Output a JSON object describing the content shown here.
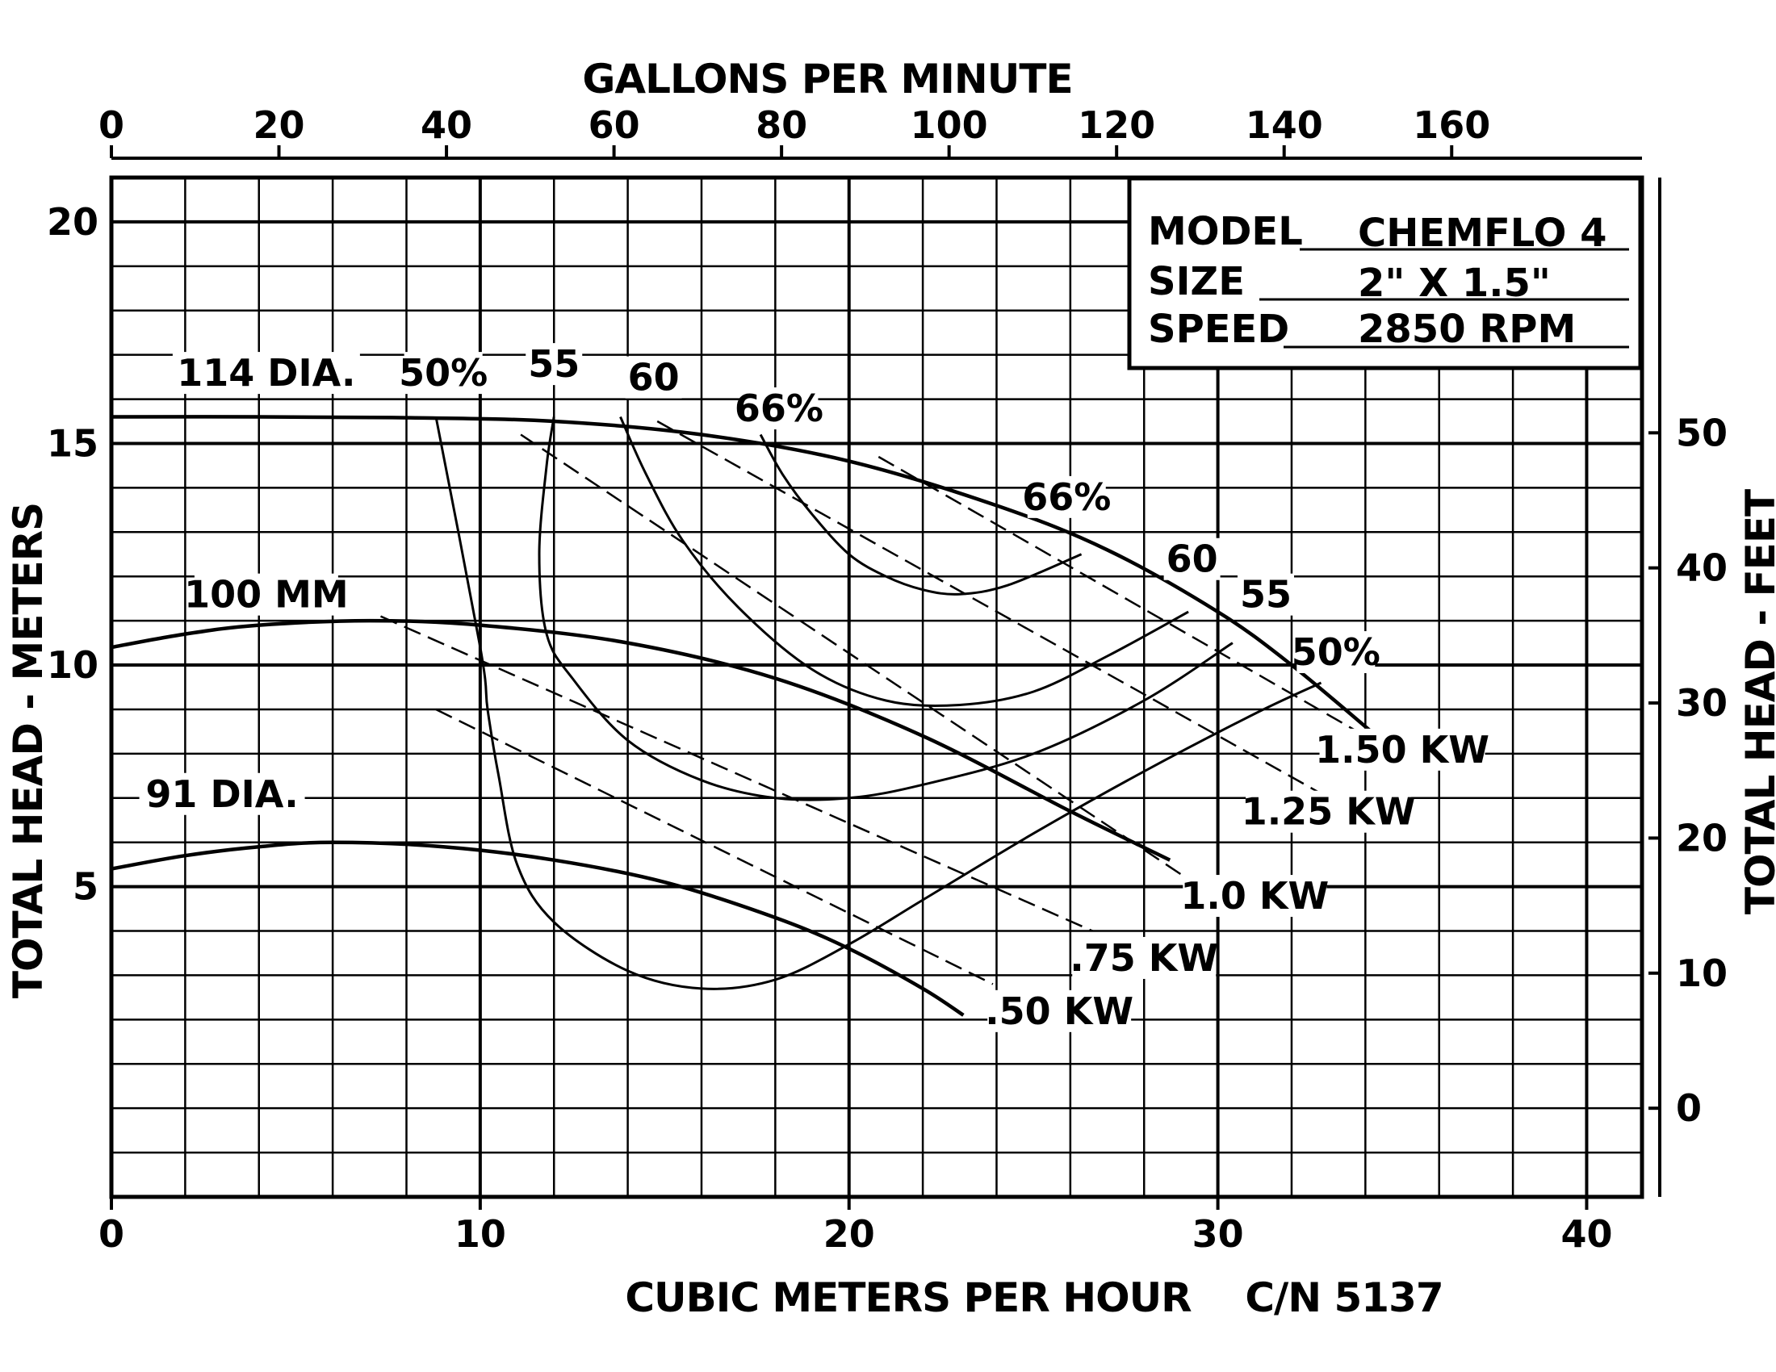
{
  "chart_data": {
    "type": "line",
    "title": "",
    "xlabel": "CUBIC METERS PER HOUR",
    "x2label": "GALLONS PER MINUTE",
    "ylabel": "TOTAL HEAD - METERS",
    "y2label": "TOTAL HEAD - FEET",
    "catalog_number": "C/N 5137",
    "xlim": [
      0,
      41.5
    ],
    "ylim": [
      -2,
      21
    ],
    "x_ticks": [
      "0",
      "10",
      "20",
      "30",
      "40"
    ],
    "x_tick_values": [
      0,
      10,
      20,
      30,
      40
    ],
    "y_ticks": [
      "5",
      "10",
      "15",
      "20"
    ],
    "y_tick_values": [
      5,
      10,
      15,
      20
    ],
    "x2_ticks": [
      "0",
      "20",
      "40",
      "60",
      "80",
      "100",
      "120",
      "140",
      "160"
    ],
    "x2_tick_values": [
      0,
      20,
      40,
      60,
      80,
      100,
      120,
      140,
      160
    ],
    "y2_ticks": [
      "0",
      "10",
      "20",
      "30",
      "40",
      "50"
    ],
    "y2_tick_values": [
      0,
      10,
      20,
      30,
      40,
      50
    ],
    "grid": true,
    "info_box": {
      "model_label": "MODEL",
      "model_value": "CHEMFLO 4",
      "size_label": "SIZE",
      "size_value": "2\" X 1.5\"",
      "speed_label": "SPEED",
      "speed_value": "2850 RPM"
    },
    "head_curves": [
      {
        "label": "114 DIA.",
        "label_pos": [
          4.2,
          16.3
        ],
        "x": [
          0,
          4,
          8,
          12,
          16,
          20,
          24,
          27,
          30,
          32,
          34.3
        ],
        "y": [
          15.6,
          15.6,
          15.58,
          15.5,
          15.2,
          14.6,
          13.6,
          12.6,
          11.2,
          10.0,
          8.4
        ]
      },
      {
        "label": "100 MM",
        "label_pos": [
          4.2,
          11.3
        ],
        "x": [
          0,
          2,
          4,
          7,
          10,
          14,
          18,
          22,
          26,
          28.7
        ],
        "y": [
          10.4,
          10.7,
          10.9,
          11.0,
          10.9,
          10.5,
          9.7,
          8.4,
          6.7,
          5.6
        ]
      },
      {
        "label": "91 DIA.",
        "label_pos": [
          3.0,
          6.8
        ],
        "x": [
          0,
          2,
          4,
          6,
          9,
          12,
          15,
          18,
          20,
          22,
          23.1
        ],
        "y": [
          5.4,
          5.7,
          5.9,
          6.0,
          5.9,
          5.6,
          5.1,
          4.3,
          3.6,
          2.7,
          2.1
        ]
      }
    ],
    "efficiency_curves": [
      {
        "label": "50%",
        "label_pos": [
          9.0,
          16.3
        ],
        "label2": "50%",
        "label2_pos": [
          33.2,
          10.0
        ],
        "x": [
          8.8,
          10,
          10.2,
          10.5,
          11,
          12,
          14,
          16,
          18,
          20,
          22,
          25,
          28,
          31,
          32.8
        ],
        "y": [
          15.6,
          10.4,
          9.0,
          7.5,
          5.5,
          4.2,
          3.1,
          2.7,
          2.9,
          3.7,
          4.7,
          6.2,
          7.6,
          8.9,
          9.6
        ]
      },
      {
        "label": "55",
        "label_pos": [
          12.0,
          16.5
        ],
        "label2": "55",
        "label2_pos": [
          31.3,
          11.3
        ],
        "x": [
          12,
          11.8,
          11.6,
          11.8,
          12.5,
          14,
          16,
          18,
          20,
          22,
          25,
          28,
          30.4
        ],
        "y": [
          15.6,
          14.5,
          12.5,
          10.7,
          9.7,
          8.3,
          7.4,
          7.0,
          7.0,
          7.3,
          8.0,
          9.2,
          10.5
        ]
      },
      {
        "label": "60",
        "label_pos": [
          14.7,
          16.2
        ],
        "label2": "60",
        "label2_pos": [
          29.3,
          12.1
        ],
        "x": [
          13.8,
          14.5,
          15.5,
          17,
          19,
          21,
          23,
          25,
          27,
          29.2
        ],
        "y": [
          15.6,
          14.3,
          12.8,
          11.3,
          9.9,
          9.2,
          9.1,
          9.4,
          10.2,
          11.2
        ]
      },
      {
        "label": "66%",
        "label_pos": [
          18.1,
          15.5
        ],
        "label2": "66%",
        "label2_pos": [
          25.9,
          13.5
        ],
        "x": [
          17.6,
          18.2,
          19,
          20,
          21,
          22,
          23,
          24.3,
          26.3
        ],
        "y": [
          15.2,
          14.3,
          13.4,
          12.5,
          12.0,
          11.7,
          11.6,
          11.8,
          12.5
        ]
      }
    ],
    "power_lines": [
      {
        "label": "1.50 KW",
        "label_pos": [
          35.0,
          7.8
        ],
        "style": "dashed",
        "x": [
          20.8,
          34.2
        ],
        "y": [
          14.7,
          8.3
        ]
      },
      {
        "label": "1.25 KW",
        "label_pos": [
          33.0,
          6.4
        ],
        "style": "dashed",
        "x": [
          14.8,
          32.8
        ],
        "y": [
          15.5,
          7.1
        ]
      },
      {
        "label": "1.0 KW",
        "label_pos": [
          31.0,
          4.5
        ],
        "style": "dashed",
        "x": [
          11.1,
          29.5
        ],
        "y": [
          15.2,
          5.0
        ]
      },
      {
        "label": ".75 KW",
        "label_pos": [
          28.0,
          3.1
        ],
        "style": "dashed",
        "x": [
          7.3,
          26.6
        ],
        "y": [
          11.1,
          4.0
        ]
      },
      {
        "label": ".50 KW",
        "label_pos": [
          25.7,
          1.9
        ],
        "style": "dashed",
        "x": [
          8.8,
          23.9
        ],
        "y": [
          9.0,
          2.8
        ]
      }
    ]
  }
}
